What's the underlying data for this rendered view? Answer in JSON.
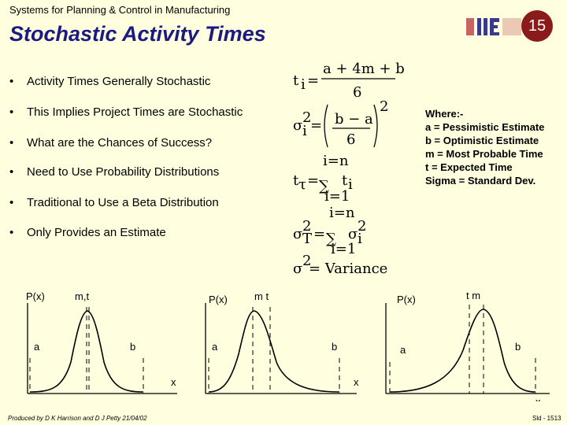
{
  "header": {
    "course": "Systems for Planning & Control in Manufacturing",
    "slide_number": "15"
  },
  "title": "Stochastic Activity Times",
  "bullets": [
    "Activity Times Generally Stochastic",
    "This Implies Project Times are Stochastic",
    "What are the Chances of Success?",
    "Need to Use Probability Distributions",
    "Traditional to Use a Beta Distribution",
    "Only Provides an Estimate"
  ],
  "formulas": {
    "t_i_lhs": "t",
    "t_i_sub": "i",
    "t_i_num": "a + 4m + b",
    "t_i_den": "6",
    "var_num": "b − a",
    "var_den": "6",
    "sum_top": "i=n",
    "sum_bottom": "i=1",
    "variance_text": "= Variance"
  },
  "where": {
    "heading": "Where:-",
    "lines": [
      "a = Pessimistic Estimate",
      "b = Optimistic Estimate",
      "m = Most Probable Time",
      "t = Expected Time",
      "Sigma = Standard Dev."
    ]
  },
  "plots": [
    {
      "px": "P(x)",
      "mt": "m,t",
      "a": "a",
      "b": "b",
      "x": "x"
    },
    {
      "px": "P(x)",
      "mt": "m t",
      "a": "a",
      "b": "b",
      "x": "x"
    },
    {
      "px": "P(x)",
      "mt": "t m",
      "a": "a",
      "b": "b",
      "x": "x"
    }
  ],
  "footer": {
    "left": "Produced by D K Harrison and D J Petty 21/04/02",
    "right": "Sld - 1513"
  },
  "colors": {
    "background": "#FFFFE0",
    "title": "#1A1A80",
    "badge": "#8B1A1A",
    "logo": "#3A3A8A"
  }
}
